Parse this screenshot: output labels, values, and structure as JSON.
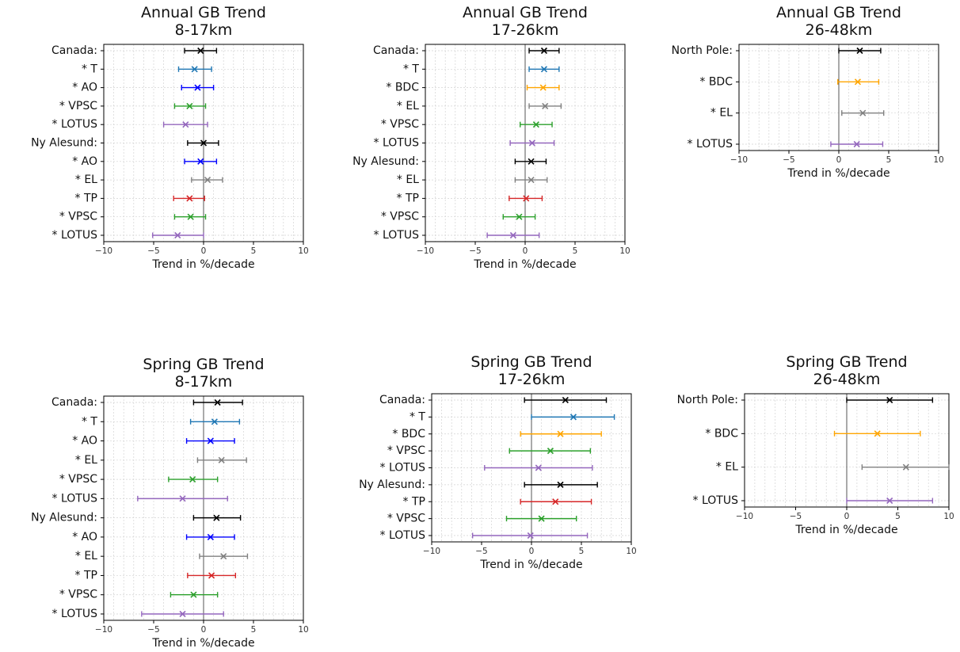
{
  "colors": {
    "black": "#000000",
    "T": "#1f77b4",
    "AO": "#0000ff",
    "BDC": "#ffa500",
    "EL": "#808080",
    "TP": "#d62728",
    "VPSC": "#2ca02c",
    "LOTUS": "#9467bd"
  },
  "chart_data": [
    {
      "type": "errorbar",
      "title": "Annual GB Trend",
      "subtitle": "8-17km",
      "xlabel": "Trend in %/decade",
      "xlim": [
        -10,
        10
      ],
      "xticks": [
        "−10",
        "−5",
        "0",
        "5",
        "10"
      ],
      "grid": true,
      "rows": [
        {
          "label": "Canada:",
          "value": -0.3,
          "low": -1.9,
          "high": 1.3,
          "color": "black"
        },
        {
          "label": "* T",
          "value": -0.9,
          "low": -2.5,
          "high": 0.8,
          "color": "T"
        },
        {
          "label": "* AO",
          "value": -0.6,
          "low": -2.2,
          "high": 1.0,
          "color": "AO"
        },
        {
          "label": "* VPSC",
          "value": -1.4,
          "low": -2.9,
          "high": 0.2,
          "color": "VPSC"
        },
        {
          "label": "* LOTUS",
          "value": -1.8,
          "low": -4.0,
          "high": 0.4,
          "color": "LOTUS"
        },
        {
          "label": "Ny Alesund:",
          "value": 0.0,
          "low": -1.6,
          "high": 1.5,
          "color": "black"
        },
        {
          "label": "* AO",
          "value": -0.3,
          "low": -1.9,
          "high": 1.3,
          "color": "AO"
        },
        {
          "label": "* EL",
          "value": 0.4,
          "low": -1.2,
          "high": 1.9,
          "color": "EL"
        },
        {
          "label": "* TP",
          "value": -1.4,
          "low": -3.0,
          "high": 0.1,
          "color": "TP"
        },
        {
          "label": "* VPSC",
          "value": -1.3,
          "low": -2.9,
          "high": 0.2,
          "color": "VPSC"
        },
        {
          "label": "* LOTUS",
          "value": -2.6,
          "low": -5.1,
          "high": 0.0,
          "color": "LOTUS"
        }
      ]
    },
    {
      "type": "errorbar",
      "title": "Annual GB Trend",
      "subtitle": "17-26km",
      "xlabel": "Trend in %/decade",
      "xlim": [
        -10,
        10
      ],
      "xticks": [
        "−10",
        "−5",
        "0",
        "5",
        "10"
      ],
      "grid": true,
      "rows": [
        {
          "label": "Canada:",
          "value": 1.9,
          "low": 0.4,
          "high": 3.4,
          "color": "black"
        },
        {
          "label": "* T",
          "value": 1.9,
          "low": 0.4,
          "high": 3.4,
          "color": "T"
        },
        {
          "label": "* BDC",
          "value": 1.8,
          "low": 0.2,
          "high": 3.4,
          "color": "BDC"
        },
        {
          "label": "* EL",
          "value": 2.0,
          "low": 0.4,
          "high": 3.6,
          "color": "EL"
        },
        {
          "label": "* VPSC",
          "value": 1.1,
          "low": -0.5,
          "high": 2.7,
          "color": "VPSC"
        },
        {
          "label": "* LOTUS",
          "value": 0.7,
          "low": -1.5,
          "high": 2.9,
          "color": "LOTUS"
        },
        {
          "label": "Ny Alesund:",
          "value": 0.6,
          "low": -1.0,
          "high": 2.1,
          "color": "black"
        },
        {
          "label": "* EL",
          "value": 0.6,
          "low": -1.0,
          "high": 2.2,
          "color": "EL"
        },
        {
          "label": "* TP",
          "value": 0.1,
          "low": -1.6,
          "high": 1.7,
          "color": "TP"
        },
        {
          "label": "* VPSC",
          "value": -0.6,
          "low": -2.2,
          "high": 1.0,
          "color": "VPSC"
        },
        {
          "label": "* LOTUS",
          "value": -1.2,
          "low": -3.8,
          "high": 1.4,
          "color": "LOTUS"
        }
      ]
    },
    {
      "type": "errorbar",
      "title": "Annual GB Trend",
      "subtitle": "26-48km",
      "xlabel": "Trend in %/decade",
      "xlim": [
        -10,
        10
      ],
      "xticks": [
        "−10",
        "−5",
        "0",
        "5",
        "10"
      ],
      "grid": true,
      "rows": [
        {
          "label": "North Pole:",
          "value": 2.1,
          "low": 0.0,
          "high": 4.2,
          "color": "black"
        },
        {
          "label": "* BDC",
          "value": 1.9,
          "low": -0.1,
          "high": 4.0,
          "color": "BDC"
        },
        {
          "label": "* EL",
          "value": 2.4,
          "low": 0.3,
          "high": 4.5,
          "color": "EL"
        },
        {
          "label": "* LOTUS",
          "value": 1.8,
          "low": -0.8,
          "high": 4.4,
          "color": "LOTUS"
        }
      ]
    },
    {
      "type": "errorbar",
      "title": "Spring GB Trend",
      "subtitle": "8-17km",
      "xlabel": "Trend in %/decade",
      "xlim": [
        -10,
        10
      ],
      "xticks": [
        "−10",
        "−5",
        "0",
        "5",
        "10"
      ],
      "grid": true,
      "rows": [
        {
          "label": "Canada:",
          "value": 1.4,
          "low": -1.0,
          "high": 3.9,
          "color": "black"
        },
        {
          "label": "* T",
          "value": 1.1,
          "low": -1.3,
          "high": 3.6,
          "color": "T"
        },
        {
          "label": "* AO",
          "value": 0.7,
          "low": -1.7,
          "high": 3.1,
          "color": "AO"
        },
        {
          "label": "* EL",
          "value": 1.8,
          "low": -0.6,
          "high": 4.3,
          "color": "EL"
        },
        {
          "label": "* VPSC",
          "value": -1.1,
          "low": -3.5,
          "high": 1.4,
          "color": "VPSC"
        },
        {
          "label": "* LOTUS",
          "value": -2.1,
          "low": -6.6,
          "high": 2.4,
          "color": "LOTUS"
        },
        {
          "label": "Ny Alesund:",
          "value": 1.3,
          "low": -1.0,
          "high": 3.7,
          "color": "black"
        },
        {
          "label": "* AO",
          "value": 0.7,
          "low": -1.7,
          "high": 3.1,
          "color": "AO"
        },
        {
          "label": "* EL",
          "value": 2.0,
          "low": -0.4,
          "high": 4.4,
          "color": "EL"
        },
        {
          "label": "* TP",
          "value": 0.8,
          "low": -1.6,
          "high": 3.2,
          "color": "TP"
        },
        {
          "label": "* VPSC",
          "value": -1.0,
          "low": -3.3,
          "high": 1.4,
          "color": "VPSC"
        },
        {
          "label": "* LOTUS",
          "value": -2.1,
          "low": -6.2,
          "high": 2.0,
          "color": "LOTUS"
        }
      ]
    },
    {
      "type": "errorbar",
      "title": "Spring GB Trend",
      "subtitle": "17-26km",
      "xlabel": "Trend in %/decade",
      "xlim": [
        -10,
        10
      ],
      "xticks": [
        "−10",
        "−5",
        "0",
        "5",
        "10"
      ],
      "grid": true,
      "rows": [
        {
          "label": "Canada:",
          "value": 3.4,
          "low": -0.7,
          "high": 7.5,
          "color": "black"
        },
        {
          "label": "* T",
          "value": 4.2,
          "low": 0.0,
          "high": 8.3,
          "color": "T"
        },
        {
          "label": "* BDC",
          "value": 2.9,
          "low": -1.1,
          "high": 7.0,
          "color": "BDC"
        },
        {
          "label": "* VPSC",
          "value": 1.9,
          "low": -2.2,
          "high": 5.9,
          "color": "VPSC"
        },
        {
          "label": "* LOTUS",
          "value": 0.7,
          "low": -4.7,
          "high": 6.1,
          "color": "LOTUS"
        },
        {
          "label": "Ny Alesund:",
          "value": 2.9,
          "low": -0.7,
          "high": 6.6,
          "color": "black"
        },
        {
          "label": "* TP",
          "value": 2.4,
          "low": -1.1,
          "high": 6.0,
          "color": "TP"
        },
        {
          "label": "* VPSC",
          "value": 1.0,
          "low": -2.5,
          "high": 4.5,
          "color": "VPSC"
        },
        {
          "label": "* LOTUS",
          "value": -0.1,
          "low": -5.9,
          "high": 5.6,
          "color": "LOTUS"
        }
      ]
    },
    {
      "type": "errorbar",
      "title": "Spring GB Trend",
      "subtitle": "26-48km",
      "xlabel": "Trend in %/decade",
      "xlim": [
        -10,
        10
      ],
      "xticks": [
        "−10",
        "−5",
        "0",
        "5",
        "10"
      ],
      "grid": true,
      "rows": [
        {
          "label": "North Pole:",
          "value": 4.2,
          "low": 0.0,
          "high": 8.4,
          "color": "black"
        },
        {
          "label": "* BDC",
          "value": 3.0,
          "low": -1.2,
          "high": 7.2,
          "color": "BDC"
        },
        {
          "label": "* EL",
          "value": 5.8,
          "low": 1.5,
          "high": 10.0,
          "color": "EL"
        },
        {
          "label": "* LOTUS",
          "value": 4.2,
          "low": 0.0,
          "high": 8.4,
          "color": "LOTUS"
        }
      ]
    }
  ]
}
